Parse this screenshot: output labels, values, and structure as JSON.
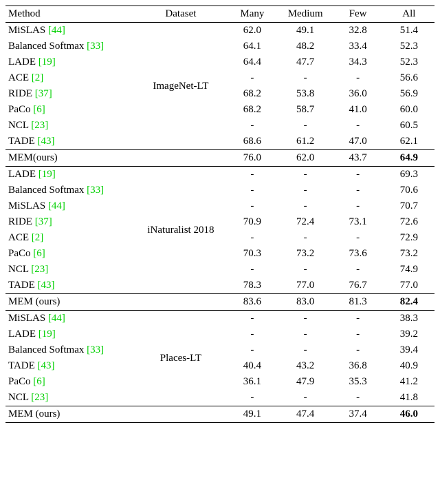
{
  "headers": {
    "method": "Method",
    "dataset": "Dataset",
    "many": "Many",
    "medium": "Medium",
    "few": "Few",
    "all": "All"
  },
  "groups": [
    {
      "dataset": "ImageNet-LT",
      "rows": [
        {
          "method": "MiSLAS ",
          "cite": "[44]",
          "many": "62.0",
          "medium": "49.1",
          "few": "32.8",
          "all": "51.4"
        },
        {
          "method": "Balanced Softmax ",
          "cite": "[33]",
          "many": "64.1",
          "medium": "48.2",
          "few": "33.4",
          "all": "52.3"
        },
        {
          "method": "LADE ",
          "cite": "[19]",
          "many": "64.4",
          "medium": "47.7",
          "few": "34.3",
          "all": "52.3"
        },
        {
          "method": "ACE ",
          "cite": "[2]",
          "many": "-",
          "medium": "-",
          "few": "-",
          "all": "56.6"
        },
        {
          "method": "RIDE ",
          "cite": "[37]",
          "many": "68.2",
          "medium": "53.8",
          "few": "36.0",
          "all": "56.9"
        },
        {
          "method": "PaCo ",
          "cite": "[6]",
          "many": "68.2",
          "medium": "58.7",
          "few": "41.0",
          "all": "60.0"
        },
        {
          "method": "NCL ",
          "cite": "[23]",
          "many": "-",
          "medium": "-",
          "few": "-",
          "all": "60.5"
        },
        {
          "method": "TADE ",
          "cite": "[43]",
          "many": "68.6",
          "medium": "61.2",
          "few": "47.0",
          "all": "62.1"
        }
      ],
      "ours": {
        "method": "MEM(ours)",
        "many": "76.0",
        "medium": "62.0",
        "few": "43.7",
        "all": "64.9"
      }
    },
    {
      "dataset": "iNaturalist 2018",
      "rows": [
        {
          "method": "LADE ",
          "cite": "[19]",
          "many": "-",
          "medium": "-",
          "few": "-",
          "all": "69.3"
        },
        {
          "method": "Balanced Softmax ",
          "cite": "[33]",
          "many": "-",
          "medium": "-",
          "few": "-",
          "all": "70.6"
        },
        {
          "method": "MiSLAS ",
          "cite": "[44]",
          "many": "-",
          "medium": "-",
          "few": "-",
          "all": "70.7"
        },
        {
          "method": "RIDE ",
          "cite": "[37]",
          "many": "70.9",
          "medium": "72.4",
          "few": "73.1",
          "all": "72.6"
        },
        {
          "method": "ACE ",
          "cite": "[2]",
          "many": "-",
          "medium": "-",
          "few": "-",
          "all": "72.9"
        },
        {
          "method": "PaCo ",
          "cite": "[6]",
          "many": "70.3",
          "medium": "73.2",
          "few": "73.6",
          "all": "73.2"
        },
        {
          "method": "NCL ",
          "cite": "[23]",
          "many": "-",
          "medium": "-",
          "few": "-",
          "all": "74.9"
        },
        {
          "method": "TADE  ",
          "cite": "[43]",
          "many": "78.3",
          "medium": "77.0",
          "few": "76.7",
          "all": "77.0"
        }
      ],
      "ours": {
        "method": "MEM (ours)",
        "many": "83.6",
        "medium": "83.0",
        "few": "81.3",
        "all": "82.4"
      }
    },
    {
      "dataset": "Places-LT",
      "rows": [
        {
          "method": "MiSLAS ",
          "cite": "[44]",
          "many": "-",
          "medium": "-",
          "few": "-",
          "all": "38.3"
        },
        {
          "method": "LADE ",
          "cite": "[19]",
          "many": "-",
          "medium": "-",
          "few": "-",
          "all": "39.2"
        },
        {
          "method": "Balanced Softmax ",
          "cite": "[33]",
          "many": "-",
          "medium": "-",
          "few": "-",
          "all": "39.4"
        },
        {
          "method": "TADE  ",
          "cite": "[43]",
          "many": "40.4",
          "medium": "43.2",
          "few": "36.8",
          "all": "40.9"
        },
        {
          "method": "PaCo ",
          "cite": "[6]",
          "many": "36.1",
          "medium": "47.9",
          "few": "35.3",
          "all": "41.2"
        },
        {
          "method": "NCL  ",
          "cite": "[23]",
          "many": "-",
          "medium": "-",
          "few": "-",
          "all": "41.8"
        }
      ],
      "ours": {
        "method": "MEM (ours)",
        "many": "49.1",
        "medium": "47.4",
        "few": "37.4",
        "all": "46.0"
      }
    }
  ],
  "style": {
    "cite_color": "#00d000",
    "font_family": "Times New Roman",
    "font_size_pt": 11,
    "background": "#ffffff",
    "text_color": "#000000",
    "rule_color": "#000000"
  }
}
